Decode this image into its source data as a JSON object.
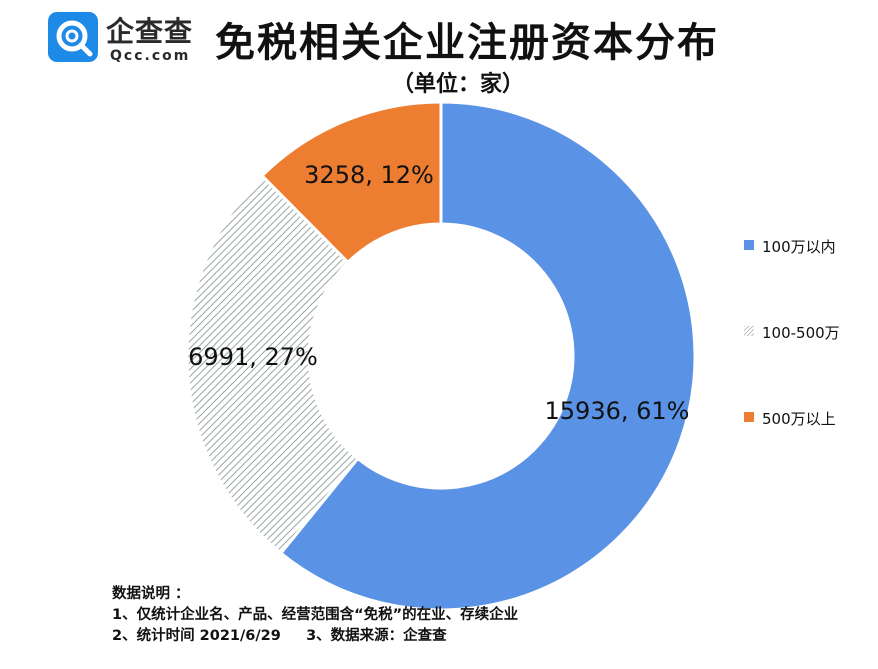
{
  "logo": {
    "name_cn": "企查查",
    "name_en": "Qcc.com",
    "brand_color": "#1e8ae8"
  },
  "title": "免税相关企业注册资本分布",
  "subtitle": "（单位：家）",
  "chart_data": {
    "type": "pie",
    "style": "donut",
    "title": "免税相关企业注册资本分布",
    "unit": "（单位：家）",
    "categories": [
      "100万以内",
      "100-500万",
      "500万以上"
    ],
    "values": [
      15936,
      6991,
      3258
    ],
    "percents": [
      61,
      27,
      12
    ],
    "labels": [
      "15936, 61%",
      "6991, 27%",
      "3258, 12%"
    ],
    "colors": [
      "#5a92e6",
      "hatched-gray",
      "#ed7d31"
    ],
    "legend_position": "right",
    "start_angle": "12 o'clock, clockwise"
  },
  "legend": {
    "items": [
      {
        "label": "100万以内",
        "color": "#5a92e6"
      },
      {
        "label": "100-500万",
        "color": "hatched-gray"
      },
      {
        "label": "500万以上",
        "color": "#ed7d31"
      }
    ]
  },
  "notes": {
    "heading": "数据说明 ：",
    "line1": "1、仅统计企业名、产品、经营范围含“免税”的在业、存续企业",
    "line2": "2、统计时间 2021/6/29     3、数据来源：企查查"
  }
}
